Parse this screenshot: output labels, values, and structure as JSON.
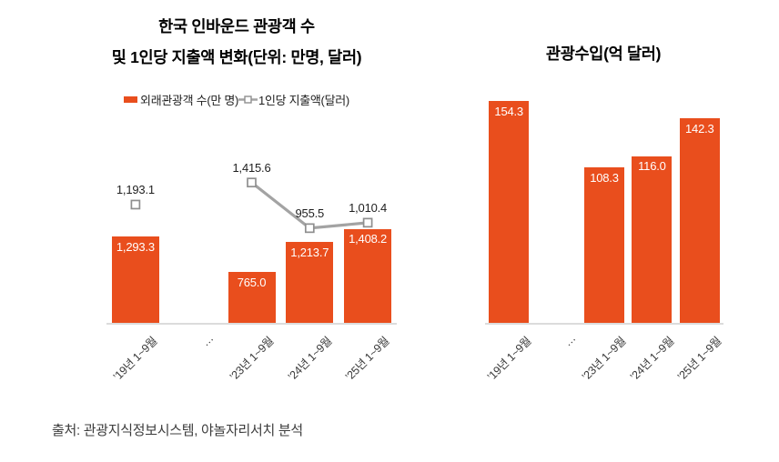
{
  "page": {
    "source_note": "출처: 관광지식정보시스템, 야놀자리서치 분석"
  },
  "colors": {
    "bar": "#E94E1D",
    "line": "#A3A3A3",
    "marker_fill": "#FFFFFF",
    "marker_stroke": "#8F8F8F",
    "axis_line": "#DCDCDC",
    "bar_label": "#FFFFFF",
    "point_label": "#1F1F1F",
    "tick_text": "#3A3A3A",
    "source_text": "#3C3C3C"
  },
  "chart_data": [
    {
      "type": "bar+line",
      "title_lines": [
        "한국 인바운드 관광객 수",
        "및 1인당 지출액 변화(단위: 만명, 달러)"
      ],
      "legend_position": "top",
      "grid": false,
      "categories": [
        "’19년 1~9월",
        "…",
        "’23년 1~9월",
        "’24년 1~9월",
        "’25년 1~9월"
      ],
      "series": [
        {
          "name": "외래관광객 수(만 명)",
          "type": "bar",
          "values": [
            1293.3,
            null,
            765.0,
            1213.7,
            1408.2
          ]
        },
        {
          "name": "1인당 지출액(달러)",
          "type": "line",
          "values": [
            1193.1,
            null,
            1415.6,
            955.5,
            1010.4
          ]
        }
      ]
    },
    {
      "type": "bar",
      "title": "관광수입(억 달러)",
      "grid": false,
      "categories": [
        "’19년 1~9월",
        "…",
        "’23년 1~9월",
        "’24년 1~9월",
        "’25년 1~9월"
      ],
      "series": [
        {
          "name": "관광수입",
          "type": "bar",
          "values": [
            154.3,
            null,
            108.3,
            116.0,
            142.3
          ]
        }
      ]
    }
  ]
}
